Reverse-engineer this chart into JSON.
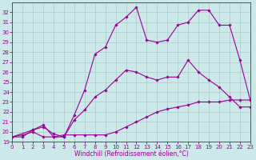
{
  "xlabel": "Windchill (Refroidissement éolien,°C)",
  "bg_color": "#cce8e8",
  "grid_color": "#aacccc",
  "line_color": "#990099",
  "xmin": 0,
  "xmax": 23,
  "ymin": 19,
  "ymax": 33,
  "series": [
    {
      "x": [
        0,
        1,
        2,
        3,
        4,
        5,
        6,
        7,
        8,
        9,
        10,
        11,
        12,
        13,
        14,
        15,
        16,
        17,
        18,
        19,
        20,
        21,
        22,
        23
      ],
      "y": [
        19.5,
        19.7,
        20.0,
        19.5,
        19.5,
        19.7,
        19.7,
        19.7,
        19.7,
        19.7,
        20.0,
        20.5,
        21.0,
        21.5,
        22.0,
        22.3,
        22.5,
        22.7,
        23.0,
        23.0,
        23.0,
        23.2,
        23.2,
        23.2
      ]
    },
    {
      "x": [
        0,
        1,
        2,
        3,
        4,
        5,
        6,
        7,
        8,
        9,
        10,
        11,
        12,
        13,
        14,
        15,
        16,
        17,
        18,
        19,
        20,
        21,
        22,
        23
      ],
      "y": [
        19.5,
        19.5,
        20.2,
        20.5,
        19.8,
        19.5,
        21.2,
        22.2,
        23.5,
        24.2,
        25.2,
        26.2,
        26.0,
        25.5,
        25.2,
        25.5,
        25.5,
        27.2,
        26.0,
        25.2,
        24.5,
        23.5,
        22.5,
        22.5
      ]
    },
    {
      "x": [
        0,
        2,
        3,
        4,
        5,
        6,
        7,
        8,
        9,
        10,
        11,
        12,
        13,
        14,
        15,
        16,
        17,
        18,
        19,
        20,
        21,
        22,
        23
      ],
      "y": [
        19.5,
        20.2,
        20.7,
        19.5,
        19.5,
        21.7,
        24.2,
        27.8,
        28.5,
        30.7,
        31.5,
        32.5,
        29.2,
        29.0,
        29.2,
        30.7,
        31.0,
        32.2,
        32.2,
        30.7,
        30.7,
        27.2,
        23.2
      ]
    }
  ],
  "yticks": [
    19,
    20,
    21,
    22,
    23,
    24,
    25,
    26,
    27,
    28,
    29,
    30,
    31,
    32
  ],
  "xticks": [
    0,
    1,
    2,
    3,
    4,
    5,
    6,
    7,
    8,
    9,
    10,
    11,
    12,
    13,
    14,
    15,
    16,
    17,
    18,
    19,
    20,
    21,
    22,
    23
  ],
  "tick_fontsize": 5,
  "xlabel_fontsize": 5.5,
  "marker_size": 1.8,
  "line_width": 0.8
}
